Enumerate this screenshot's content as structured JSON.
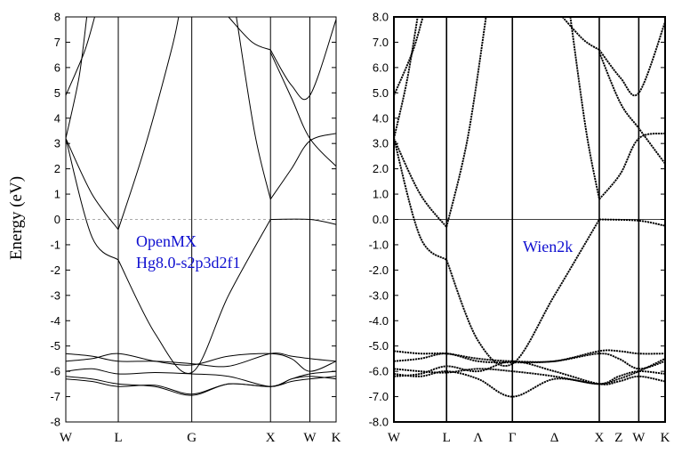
{
  "colors": {
    "annotation": "#1010d0",
    "fermi_dashed": "#aaaaaa",
    "band": "#000000"
  },
  "chart_data": [
    {
      "type": "line",
      "ylabel": "Energy (eV)",
      "annotation_lines": [
        "OpenMX",
        "Hg8.0-s2p3d2f1"
      ],
      "ylim": [
        -8,
        8
      ],
      "y_tick_labels": [
        "-8",
        "-7",
        "-6",
        "-5",
        "-4",
        "-3",
        "-2",
        "-1",
        "0",
        "1",
        "2",
        "3",
        "4",
        "5",
        "6",
        "7",
        "8"
      ],
      "x_tick_positions": [
        0,
        1,
        2.4,
        3.9,
        4.65,
        5.15
      ],
      "x_tick_labels": [
        "W",
        "L",
        "G",
        "X",
        "W",
        "K"
      ],
      "fermi_level": 0,
      "series": [
        {
          "x": [
            0,
            0.5,
            1.0
          ],
          "y": [
            3.2,
            -0.7,
            -1.6
          ]
        },
        {
          "x": [
            1.0,
            1.7,
            2.4,
            3.1,
            3.9
          ],
          "y": [
            -1.6,
            -4.5,
            -6.05,
            -3.0,
            0.0
          ]
        },
        {
          "x": [
            3.9,
            4.65,
            5.15
          ],
          "y": [
            0.0,
            0.0,
            -0.2
          ]
        },
        {
          "x": [
            0,
            0.5,
            1.0
          ],
          "y": [
            3.2,
            1.0,
            -0.4
          ]
        },
        {
          "x": [
            1.0,
            1.5,
            2.0,
            2.15
          ],
          "y": [
            -0.4,
            2.8,
            6.6,
            8.0
          ]
        },
        {
          "x": [
            3.25,
            3.6,
            3.9
          ],
          "y": [
            8.0,
            3.4,
            0.8
          ]
        },
        {
          "x": [
            3.9,
            4.3,
            4.65,
            5.15
          ],
          "y": [
            0.8,
            2.0,
            3.1,
            3.4
          ]
        },
        {
          "x": [
            0,
            0.35,
            0.55
          ],
          "y": [
            4.9,
            6.6,
            8.0
          ]
        },
        {
          "x": [
            3.1,
            3.55,
            3.9
          ],
          "y": [
            8.0,
            7.0,
            6.7
          ]
        },
        {
          "x": [
            3.9,
            4.3,
            4.65,
            5.15
          ],
          "y": [
            6.7,
            5.3,
            4.9,
            7.9
          ]
        },
        {
          "x": [
            0,
            0.25,
            0.4
          ],
          "y": [
            3.2,
            5.6,
            8.0
          ]
        },
        {
          "x": [
            3.9,
            4.3,
            4.65,
            5.15
          ],
          "y": [
            6.6,
            4.8,
            3.2,
            2.1
          ]
        },
        {
          "x": [
            0,
            0.5,
            1.0,
            1.7,
            2.4,
            3.1,
            3.9,
            4.3,
            4.65,
            5.15
          ],
          "y": [
            -5.3,
            -5.4,
            -5.6,
            -5.6,
            -5.7,
            -5.8,
            -5.3,
            -5.4,
            -5.5,
            -5.6
          ]
        },
        {
          "x": [
            0,
            0.5,
            1.0,
            1.7,
            2.4,
            3.1,
            3.9,
            4.3,
            4.65,
            5.15
          ],
          "y": [
            -5.6,
            -5.5,
            -5.3,
            -5.6,
            -5.75,
            -5.4,
            -5.3,
            -5.5,
            -6.0,
            -5.6
          ]
        },
        {
          "x": [
            0,
            0.5,
            1.0,
            1.7,
            2.4,
            3.1,
            3.9,
            4.3,
            4.65,
            5.15
          ],
          "y": [
            -6.0,
            -5.9,
            -6.1,
            -6.05,
            -6.1,
            -6.2,
            -6.6,
            -6.3,
            -6.2,
            -6.3
          ]
        },
        {
          "x": [
            0,
            0.5,
            1.0,
            1.7,
            2.4,
            3.1,
            3.9,
            4.3,
            4.65,
            5.15
          ],
          "y": [
            -6.2,
            -6.3,
            -6.5,
            -6.6,
            -6.95,
            -6.5,
            -6.6,
            -6.3,
            -6.1,
            -6.0
          ]
        },
        {
          "x": [
            0,
            0.5,
            1.0,
            1.7,
            2.4,
            3.1,
            3.9,
            4.3,
            4.65,
            5.15
          ],
          "y": [
            -6.3,
            -6.4,
            -6.6,
            -6.55,
            -6.9,
            -6.5,
            -6.6,
            -6.4,
            -6.3,
            -6.2
          ]
        }
      ]
    },
    {
      "type": "line",
      "annotation_lines": [
        "Wien2k"
      ],
      "ylim": [
        -8,
        8
      ],
      "y_tick_labels": [
        "-8.0",
        "-7.0",
        "-6.0",
        "-5.0",
        "-4.0",
        "-3.0",
        "-2.0",
        "-1.0",
        "0.0",
        "1.0",
        "2.0",
        "3.0",
        "4.0",
        "5.0",
        "6.0",
        "7.0",
        "8.0"
      ],
      "x_tick_positions": [
        0,
        1,
        1.6,
        2.25,
        3.05,
        3.9,
        4.27,
        4.65,
        5.15
      ],
      "x_tick_labels": [
        "W",
        "L",
        "Λ",
        "Γ",
        "Δ",
        "X",
        "Z",
        "W",
        "K"
      ],
      "vertical_lines_at": [
        1,
        2.25,
        3.9,
        4.65
      ],
      "fermi_level": 0,
      "series": [
        {
          "x": [
            0,
            0.5,
            1.0
          ],
          "y": [
            3.2,
            -0.7,
            -1.6
          ]
        },
        {
          "x": [
            1.0,
            1.6,
            2.25,
            3.05,
            3.9
          ],
          "y": [
            -1.6,
            -4.8,
            -5.7,
            -3.0,
            0.0
          ]
        },
        {
          "x": [
            3.9,
            4.65,
            5.15
          ],
          "y": [
            0.0,
            -0.05,
            -0.25
          ]
        },
        {
          "x": [
            0,
            0.5,
            1.0
          ],
          "y": [
            3.2,
            1.0,
            -0.3
          ]
        },
        {
          "x": [
            1.0,
            1.4,
            1.75
          ],
          "y": [
            -0.3,
            3.2,
            8.0
          ]
        },
        {
          "x": [
            3.35,
            3.65,
            3.9
          ],
          "y": [
            8.0,
            3.5,
            0.8
          ]
        },
        {
          "x": [
            3.9,
            4.3,
            4.65,
            5.15
          ],
          "y": [
            0.8,
            1.8,
            3.2,
            3.4
          ]
        },
        {
          "x": [
            0,
            0.35,
            0.55
          ],
          "y": [
            4.9,
            6.6,
            8.0
          ]
        },
        {
          "x": [
            3.2,
            3.6,
            3.9
          ],
          "y": [
            8.0,
            7.1,
            6.7
          ]
        },
        {
          "x": [
            3.9,
            4.3,
            4.65,
            5.15
          ],
          "y": [
            6.7,
            5.6,
            5.0,
            7.8
          ]
        },
        {
          "x": [
            0,
            0.25,
            0.45
          ],
          "y": [
            3.2,
            5.5,
            8.0
          ]
        },
        {
          "x": [
            3.9,
            4.3,
            4.65,
            5.15
          ],
          "y": [
            6.6,
            4.6,
            3.6,
            2.2
          ]
        },
        {
          "x": [
            0,
            0.5,
            1.0,
            1.6,
            2.25,
            3.05,
            3.9,
            4.27,
            4.65,
            5.15
          ],
          "y": [
            -5.2,
            -5.3,
            -5.3,
            -5.5,
            -5.6,
            -5.6,
            -5.2,
            -5.2,
            -5.3,
            -5.3
          ]
        },
        {
          "x": [
            0,
            0.5,
            1.0,
            1.6,
            2.25,
            3.05,
            3.9,
            4.27,
            4.65,
            5.15
          ],
          "y": [
            -5.6,
            -5.5,
            -5.3,
            -5.6,
            -5.65,
            -5.6,
            -5.3,
            -5.5,
            -5.9,
            -5.6
          ]
        },
        {
          "x": [
            0,
            0.5,
            1.0,
            1.6,
            2.25,
            3.05,
            3.9,
            4.27,
            4.65,
            5.15
          ],
          "y": [
            -5.9,
            -6.0,
            -6.05,
            -5.9,
            -6.0,
            -6.2,
            -6.5,
            -6.3,
            -6.0,
            -5.5
          ]
        },
        {
          "x": [
            0,
            0.5,
            1.0,
            1.6,
            2.25,
            3.05,
            3.9,
            4.27,
            4.65,
            5.15
          ],
          "y": [
            -6.1,
            -6.2,
            -6.0,
            -6.3,
            -7.0,
            -6.3,
            -6.5,
            -6.2,
            -6.0,
            -6.1
          ]
        },
        {
          "x": [
            0,
            0.5,
            1.0,
            1.6,
            2.25,
            3.05,
            3.9,
            4.27,
            4.65,
            5.15
          ],
          "y": [
            -6.2,
            -6.1,
            -5.8,
            -6.0,
            -5.6,
            -6.0,
            -6.5,
            -6.4,
            -6.2,
            -6.4
          ]
        }
      ]
    }
  ]
}
